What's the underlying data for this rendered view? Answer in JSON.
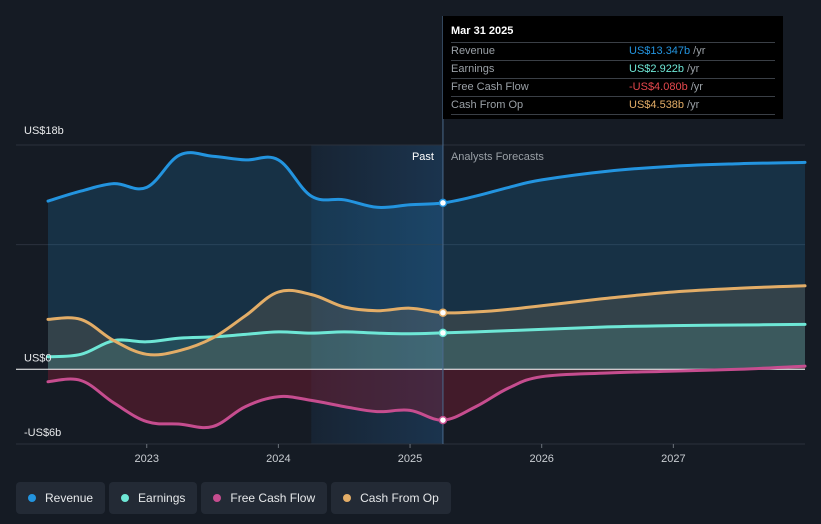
{
  "colors": {
    "revenue": "#2394df",
    "earnings": "#6ee7d6",
    "free_cash_flow": "#c64d8f",
    "cash_from_op": "#e3ad67",
    "background": "#151b24",
    "past_shade": "#1b3550",
    "negative_fill": "#7a1c33"
  },
  "tooltip": {
    "title": "Mar 31 2025",
    "rows": [
      {
        "label": "Revenue",
        "value": "US$13.347b",
        "unit": "/yr",
        "color": "#2394df"
      },
      {
        "label": "Earnings",
        "value": "US$2.922b",
        "unit": "/yr",
        "color": "#6ee7d6"
      },
      {
        "label": "Free Cash Flow",
        "value": "-US$4.080b",
        "unit": "/yr",
        "color": "#e5484d"
      },
      {
        "label": "Cash From Op",
        "value": "US$4.538b",
        "unit": "/yr",
        "color": "#e3ad67"
      }
    ]
  },
  "legend": [
    {
      "label": "Revenue",
      "color": "#2394df",
      "icon": "dot-icon"
    },
    {
      "label": "Earnings",
      "color": "#6ee7d6",
      "icon": "dot-icon"
    },
    {
      "label": "Free Cash Flow",
      "color": "#c64d8f",
      "icon": "dot-icon"
    },
    {
      "label": "Cash From Op",
      "color": "#e3ad67",
      "icon": "dot-icon"
    }
  ],
  "chart_data": {
    "type": "line",
    "title": "",
    "xlabel": "",
    "ylabel": "",
    "ylim": [
      -6,
      18
    ],
    "xlim": [
      2022.25,
      2028.0
    ],
    "y_tick_labels": [
      {
        "value": 18,
        "label": "US$18b"
      },
      {
        "value": 0,
        "label": "US$0"
      },
      {
        "value": -6,
        "label": "-US$6b"
      }
    ],
    "x_tick_labels": [
      {
        "value": 2023,
        "label": "2023"
      },
      {
        "value": 2024,
        "label": "2024"
      },
      {
        "value": 2025,
        "label": "2025"
      },
      {
        "value": 2026,
        "label": "2026"
      },
      {
        "value": 2027,
        "label": "2027"
      }
    ],
    "divider_x": 2025.25,
    "shade_start_x": 2024.25,
    "past_label": "Past",
    "forecast_label": "Analysts Forecasts",
    "series": [
      {
        "name": "Revenue",
        "key": "revenue",
        "x": [
          2022.25,
          2022.5,
          2022.75,
          2023.0,
          2023.25,
          2023.5,
          2023.75,
          2024.0,
          2024.25,
          2024.5,
          2024.75,
          2025.0,
          2025.25,
          2025.5,
          2025.75,
          2026.0,
          2026.5,
          2027.0,
          2027.5,
          2028.0
        ],
        "values": [
          13.5,
          14.3,
          14.9,
          14.6,
          17.2,
          17.1,
          16.8,
          16.8,
          13.9,
          13.6,
          13.0,
          13.2,
          13.35,
          13.9,
          14.6,
          15.2,
          15.9,
          16.3,
          16.5,
          16.6
        ]
      },
      {
        "name": "Earnings",
        "key": "earnings",
        "x": [
          2022.25,
          2022.5,
          2022.75,
          2023.0,
          2023.25,
          2023.5,
          2023.75,
          2024.0,
          2024.25,
          2024.5,
          2024.75,
          2025.0,
          2025.25,
          2025.5,
          2025.75,
          2026.0,
          2026.5,
          2027.0,
          2027.5,
          2028.0
        ],
        "values": [
          1.0,
          1.2,
          2.3,
          2.2,
          2.5,
          2.6,
          2.8,
          3.0,
          2.9,
          3.0,
          2.9,
          2.85,
          2.92,
          3.0,
          3.1,
          3.2,
          3.4,
          3.5,
          3.55,
          3.6
        ]
      },
      {
        "name": "Free Cash Flow",
        "key": "free_cash_flow",
        "x": [
          2022.25,
          2022.5,
          2022.75,
          2023.0,
          2023.25,
          2023.5,
          2023.75,
          2024.0,
          2024.25,
          2024.5,
          2024.75,
          2025.0,
          2025.25,
          2025.5,
          2025.75,
          2026.0,
          2026.5,
          2027.0,
          2027.5,
          2028.0
        ],
        "values": [
          -1.0,
          -0.9,
          -2.7,
          -4.2,
          -4.4,
          -4.6,
          -3.0,
          -2.2,
          -2.5,
          -3.0,
          -3.4,
          -3.3,
          -4.08,
          -3.0,
          -1.5,
          -0.6,
          -0.3,
          -0.15,
          0.0,
          0.25
        ]
      },
      {
        "name": "Cash From Op",
        "key": "cash_from_op",
        "x": [
          2022.25,
          2022.5,
          2022.75,
          2023.0,
          2023.25,
          2023.5,
          2023.75,
          2024.0,
          2024.25,
          2024.5,
          2024.75,
          2025.0,
          2025.25,
          2025.5,
          2025.75,
          2026.0,
          2026.5,
          2027.0,
          2027.5,
          2028.0
        ],
        "values": [
          4.0,
          4.0,
          2.3,
          1.2,
          1.5,
          2.5,
          4.3,
          6.2,
          6.0,
          5.0,
          4.7,
          4.9,
          4.54,
          4.6,
          4.8,
          5.1,
          5.7,
          6.2,
          6.5,
          6.7
        ]
      }
    ]
  }
}
